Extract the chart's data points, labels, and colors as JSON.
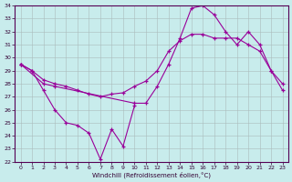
{
  "xlabel": "Windchill (Refroidissement éolien,°C)",
  "bg_color": "#c8ecec",
  "line_color": "#990099",
  "ylim": [
    22,
    34
  ],
  "xlim": [
    -0.5,
    23.5
  ],
  "yticks": [
    22,
    23,
    24,
    25,
    26,
    27,
    28,
    29,
    30,
    31,
    32,
    33,
    34
  ],
  "xticks": [
    0,
    1,
    2,
    3,
    4,
    5,
    6,
    7,
    8,
    9,
    10,
    11,
    12,
    13,
    14,
    15,
    16,
    17,
    18,
    19,
    20,
    21,
    22,
    23
  ],
  "line1_x": [
    0,
    1,
    2,
    3,
    4,
    5,
    6,
    7,
    8,
    9,
    10
  ],
  "line1_y": [
    29.5,
    29.0,
    27.5,
    26.0,
    25.0,
    24.8,
    24.2,
    22.2,
    24.5,
    23.2,
    26.3
  ],
  "line2_x": [
    0,
    2,
    3,
    10,
    11,
    12,
    13,
    14,
    15,
    16,
    17,
    18,
    19,
    20,
    21,
    22,
    23
  ],
  "line2_y": [
    29.5,
    28.0,
    27.8,
    26.5,
    26.5,
    27.8,
    29.5,
    31.5,
    33.8,
    34.0,
    33.3,
    32.0,
    31.0,
    32.0,
    31.0,
    29.0,
    27.5
  ],
  "line3_x": [
    0,
    1,
    2,
    3,
    4,
    5,
    6,
    7,
    8,
    9,
    10,
    11,
    12,
    13,
    14,
    15,
    16,
    17,
    18,
    19,
    20,
    21,
    22,
    23
  ],
  "line3_y": [
    29.5,
    29.0,
    28.3,
    28.0,
    27.8,
    27.5,
    27.2,
    27.0,
    27.2,
    27.3,
    27.8,
    28.2,
    29.0,
    30.5,
    31.3,
    31.8,
    31.8,
    31.5,
    31.5,
    31.5,
    31.0,
    30.5,
    29.0,
    28.0
  ]
}
